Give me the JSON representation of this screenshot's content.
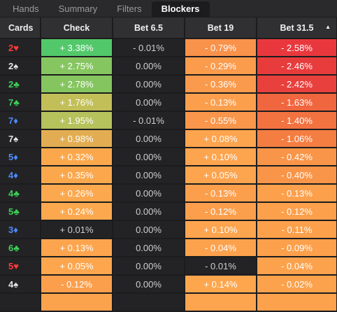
{
  "tabs": [
    {
      "label": "Hands",
      "active": false
    },
    {
      "label": "Summary",
      "active": false
    },
    {
      "label": "Filters",
      "active": false
    },
    {
      "label": "Blockers",
      "active": true
    }
  ],
  "columns": [
    "Cards",
    "Check",
    "Bet 6.5",
    "Bet 19",
    "Bet 31.5"
  ],
  "sort_icon": "sort-ascending-icon",
  "suit_colors": {
    "hearts": "#ff3b3b",
    "spades": "#e6e6e6",
    "clubs": "#3fd05a",
    "diamonds": "#4b8cff"
  },
  "rows": [
    {
      "rank": "2",
      "suit": "♥",
      "suit_name": "hearts",
      "check": "+ 3.38%",
      "check_bg": "#52c86a",
      "b65": "- 0.01%",
      "b65_bg": "#232325",
      "b19": "- 0.79%",
      "b19_bg": "#f9924a",
      "b31": "- 2.58%",
      "b31_bg": "#e8383e"
    },
    {
      "rank": "2",
      "suit": "♠",
      "suit_name": "spades",
      "check": "+ 2.75%",
      "check_bg": "#86c660",
      "b65": "0.00%",
      "b65_bg": "#232325",
      "b19": "- 0.29%",
      "b19_bg": "#fb9b4c",
      "b31": "- 2.46%",
      "b31_bg": "#e83c3c"
    },
    {
      "rank": "2",
      "suit": "♣",
      "suit_name": "clubs",
      "check": "+ 2.78%",
      "check_bg": "#85c560",
      "b65": "0.00%",
      "b65_bg": "#232325",
      "b19": "- 0.36%",
      "b19_bg": "#fa9a4c",
      "b31": "- 2.42%",
      "b31_bg": "#e8403c"
    },
    {
      "rank": "7",
      "suit": "♣",
      "suit_name": "clubs",
      "check": "+ 1.76%",
      "check_bg": "#c2bf58",
      "b65": "0.00%",
      "b65_bg": "#232325",
      "b19": "- 0.13%",
      "b19_bg": "#fc9f4d",
      "b31": "- 1.63%",
      "b31_bg": "#f0663e"
    },
    {
      "rank": "7",
      "suit": "♦",
      "suit_name": "diamonds",
      "check": "+ 1.95%",
      "check_bg": "#b6c25c",
      "b65": "- 0.01%",
      "b65_bg": "#232325",
      "b19": "- 0.55%",
      "b19_bg": "#fa964b",
      "b31": "- 1.40%",
      "b31_bg": "#f27240"
    },
    {
      "rank": "7",
      "suit": "♠",
      "suit_name": "spades",
      "check": "+ 0.98%",
      "check_bg": "#e2ad52",
      "b65": "0.00%",
      "b65_bg": "#232325",
      "b19": "+ 0.08%",
      "b19_bg": "#fda44e",
      "b31": "- 1.06%",
      "b31_bg": "#f47d42"
    },
    {
      "rank": "5",
      "suit": "♦",
      "suit_name": "diamonds",
      "check": "+ 0.32%",
      "check_bg": "#fba84d",
      "b65": "0.00%",
      "b65_bg": "#232325",
      "b19": "+ 0.10%",
      "b19_bg": "#fda44e",
      "b31": "- 0.42%",
      "b31_bg": "#f89548"
    },
    {
      "rank": "4",
      "suit": "♦",
      "suit_name": "diamonds",
      "check": "+ 0.35%",
      "check_bg": "#fba84d",
      "b65": "0.00%",
      "b65_bg": "#232325",
      "b19": "+ 0.05%",
      "b19_bg": "#fda44e",
      "b31": "- 0.40%",
      "b31_bg": "#f89548"
    },
    {
      "rank": "4",
      "suit": "♣",
      "suit_name": "clubs",
      "check": "+ 0.26%",
      "check_bg": "#fca84e",
      "b65": "0.00%",
      "b65_bg": "#232325",
      "b19": "- 0.13%",
      "b19_bg": "#fc9f4d",
      "b31": "- 0.13%",
      "b31_bg": "#fca04c"
    },
    {
      "rank": "5",
      "suit": "♣",
      "suit_name": "clubs",
      "check": "+ 0.24%",
      "check_bg": "#fca84e",
      "b65": "0.00%",
      "b65_bg": "#232325",
      "b19": "- 0.12%",
      "b19_bg": "#fc9f4d",
      "b31": "- 0.12%",
      "b31_bg": "#fca04c"
    },
    {
      "rank": "3",
      "suit": "♦",
      "suit_name": "diamonds",
      "check": "+ 0.01%",
      "check_bg": "#232325",
      "b65": "0.00%",
      "b65_bg": "#232325",
      "b19": "+ 0.10%",
      "b19_bg": "#fda44e",
      "b31": "- 0.11%",
      "b31_bg": "#fca04c"
    },
    {
      "rank": "6",
      "suit": "♣",
      "suit_name": "clubs",
      "check": "+ 0.13%",
      "check_bg": "#fda54e",
      "b65": "0.00%",
      "b65_bg": "#232325",
      "b19": "- 0.04%",
      "b19_bg": "#fca24d",
      "b31": "- 0.09%",
      "b31_bg": "#fca04c"
    },
    {
      "rank": "5",
      "suit": "♥",
      "suit_name": "hearts",
      "check": "+ 0.05%",
      "check_bg": "#fda64e",
      "b65": "0.00%",
      "b65_bg": "#232325",
      "b19": "- 0.01%",
      "b19_bg": "#232325",
      "b31": "- 0.04%",
      "b31_bg": "#fca24c"
    },
    {
      "rank": "4",
      "suit": "♠",
      "suit_name": "spades",
      "check": "- 0.12%",
      "check_bg": "#fb9f4c",
      "b65": "0.00%",
      "b65_bg": "#232325",
      "b19": "+ 0.14%",
      "b19_bg": "#fda64e",
      "b31": "- 0.02%",
      "b31_bg": "#fca24c"
    },
    {
      "rank": "",
      "suit": "",
      "suit_name": "",
      "check": "",
      "check_bg": "#fba24c",
      "b65": "",
      "b65_bg": "#232325",
      "b19": "",
      "b19_bg": "#fda44e",
      "b31": "",
      "b31_bg": "#fca24c"
    }
  ]
}
